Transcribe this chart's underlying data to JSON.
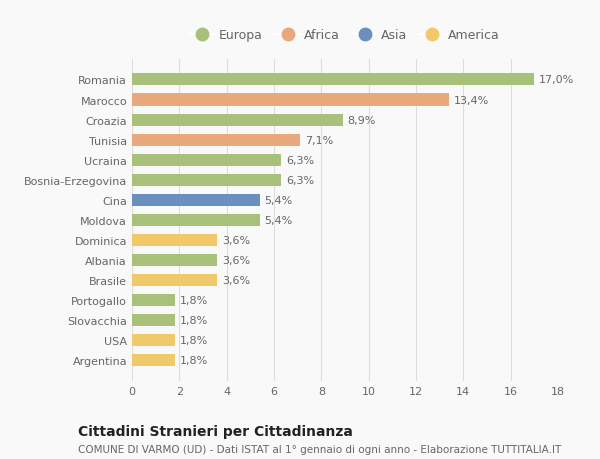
{
  "countries": [
    "Romania",
    "Marocco",
    "Croazia",
    "Tunisia",
    "Ucraina",
    "Bosnia-Erzegovina",
    "Cina",
    "Moldova",
    "Dominica",
    "Albania",
    "Brasile",
    "Portogallo",
    "Slovacchia",
    "USA",
    "Argentina"
  ],
  "values": [
    17.0,
    13.4,
    8.9,
    7.1,
    6.3,
    6.3,
    5.4,
    5.4,
    3.6,
    3.6,
    3.6,
    1.8,
    1.8,
    1.8,
    1.8
  ],
  "labels": [
    "17,0%",
    "13,4%",
    "8,9%",
    "7,1%",
    "6,3%",
    "6,3%",
    "5,4%",
    "5,4%",
    "3,6%",
    "3,6%",
    "3,6%",
    "1,8%",
    "1,8%",
    "1,8%",
    "1,8%"
  ],
  "continents": [
    "Europa",
    "Africa",
    "Europa",
    "Africa",
    "Europa",
    "Europa",
    "Asia",
    "Europa",
    "America",
    "Europa",
    "America",
    "Europa",
    "Europa",
    "America",
    "America"
  ],
  "continent_colors": {
    "Europa": "#a8c07a",
    "Africa": "#e8a87c",
    "Asia": "#6b8fbf",
    "America": "#f0c96b"
  },
  "legend_order": [
    "Europa",
    "Africa",
    "Asia",
    "America"
  ],
  "title": "Cittadini Stranieri per Cittadinanza",
  "subtitle": "COMUNE DI VARMO (UD) - Dati ISTAT al 1° gennaio di ogni anno - Elaborazione TUTTITALIA.IT",
  "xlim": [
    0,
    18
  ],
  "xticks": [
    0,
    2,
    4,
    6,
    8,
    10,
    12,
    14,
    16,
    18
  ],
  "background_color": "#f9f9f9",
  "grid_color": "#dddddd",
  "bar_height": 0.6,
  "title_fontsize": 10,
  "subtitle_fontsize": 7.5,
  "label_fontsize": 8,
  "tick_fontsize": 8,
  "legend_fontsize": 9
}
